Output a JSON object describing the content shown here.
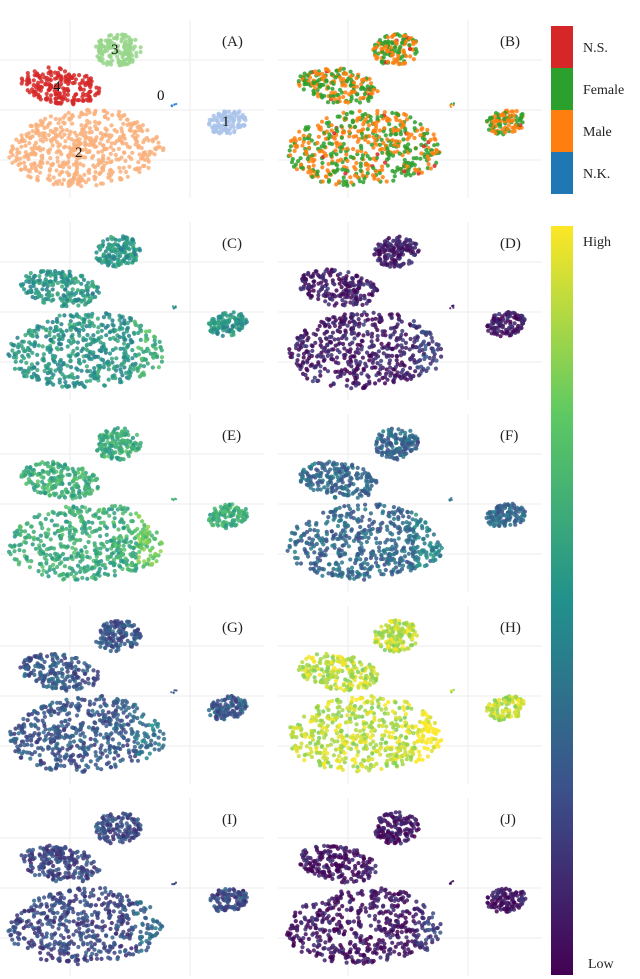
{
  "chart_data": {
    "type": "scatter",
    "description_layout": "grid of 10 UMAP embedding panels",
    "panels": [
      {
        "label": "(A)",
        "coloring": "cluster"
      },
      {
        "label": "(B)",
        "coloring": "sex"
      },
      {
        "label": "(C)",
        "coloring": "continuous",
        "level": 0.52
      },
      {
        "label": "(D)",
        "coloring": "continuous",
        "level": 0.08
      },
      {
        "label": "(E)",
        "coloring": "continuous",
        "level": 0.62
      },
      {
        "label": "(F)",
        "coloring": "continuous",
        "level": 0.33
      },
      {
        "label": "(G)",
        "coloring": "continuous",
        "level": 0.27
      },
      {
        "label": "(H)",
        "coloring": "continuous",
        "level": 0.9
      },
      {
        "label": "(I)",
        "coloring": "continuous",
        "level": 0.22
      },
      {
        "label": "(J)",
        "coloring": "continuous",
        "level": 0.06
      }
    ],
    "clusters": [
      {
        "id": "0",
        "color": "#2b7fd4"
      },
      {
        "id": "1",
        "color": "#a9c3ea"
      },
      {
        "id": "2",
        "color": "#f9b07b"
      },
      {
        "id": "3",
        "color": "#98d68b"
      },
      {
        "id": "4",
        "color": "#d62828"
      }
    ],
    "categorical_legend": [
      {
        "name": "N.S.",
        "color": "#d62728"
      },
      {
        "name": "Female",
        "color": "#2ca02c"
      },
      {
        "name": "Male",
        "color": "#ff7f0e"
      },
      {
        "name": "N.K.",
        "color": "#1f77b4"
      }
    ],
    "continuous_legend": {
      "high_label": "High",
      "low_label": "Low",
      "colormap": [
        "#440154",
        "#3b528b",
        "#21918c",
        "#5ec962",
        "#fde725"
      ]
    }
  }
}
